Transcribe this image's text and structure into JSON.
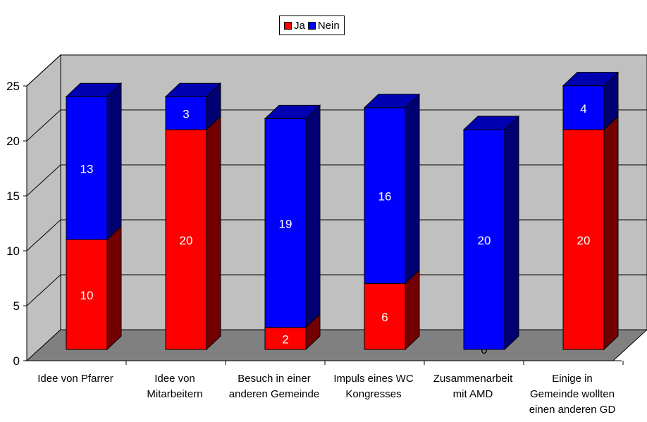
{
  "chart_data": {
    "type": "bar",
    "stacked": true,
    "style": "3d",
    "title": "",
    "xlabel": "",
    "ylabel": "",
    "ylim": [
      0,
      25
    ],
    "yticks": [
      0,
      5,
      10,
      15,
      20,
      25
    ],
    "grid": true,
    "legend_position": "top",
    "categories": [
      [
        "Idee von Pfarrer"
      ],
      [
        "Idee von",
        "Mitarbeitern"
      ],
      [
        "Besuch in einer",
        "anderen Gemeinde"
      ],
      [
        "Impuls eines WC",
        "Kongresses"
      ],
      [
        "Zusammenarbeit",
        "mit AMD"
      ],
      [
        "Einige in",
        "Gemeinde wollten",
        "einen anderen GD"
      ]
    ],
    "series": [
      {
        "name": "Ja",
        "color": "#ff0000",
        "values": [
          10,
          20,
          2,
          6,
          0,
          20
        ]
      },
      {
        "name": "Nein",
        "color": "#0000ff",
        "values": [
          13,
          3,
          19,
          16,
          20,
          4
        ]
      }
    ]
  }
}
